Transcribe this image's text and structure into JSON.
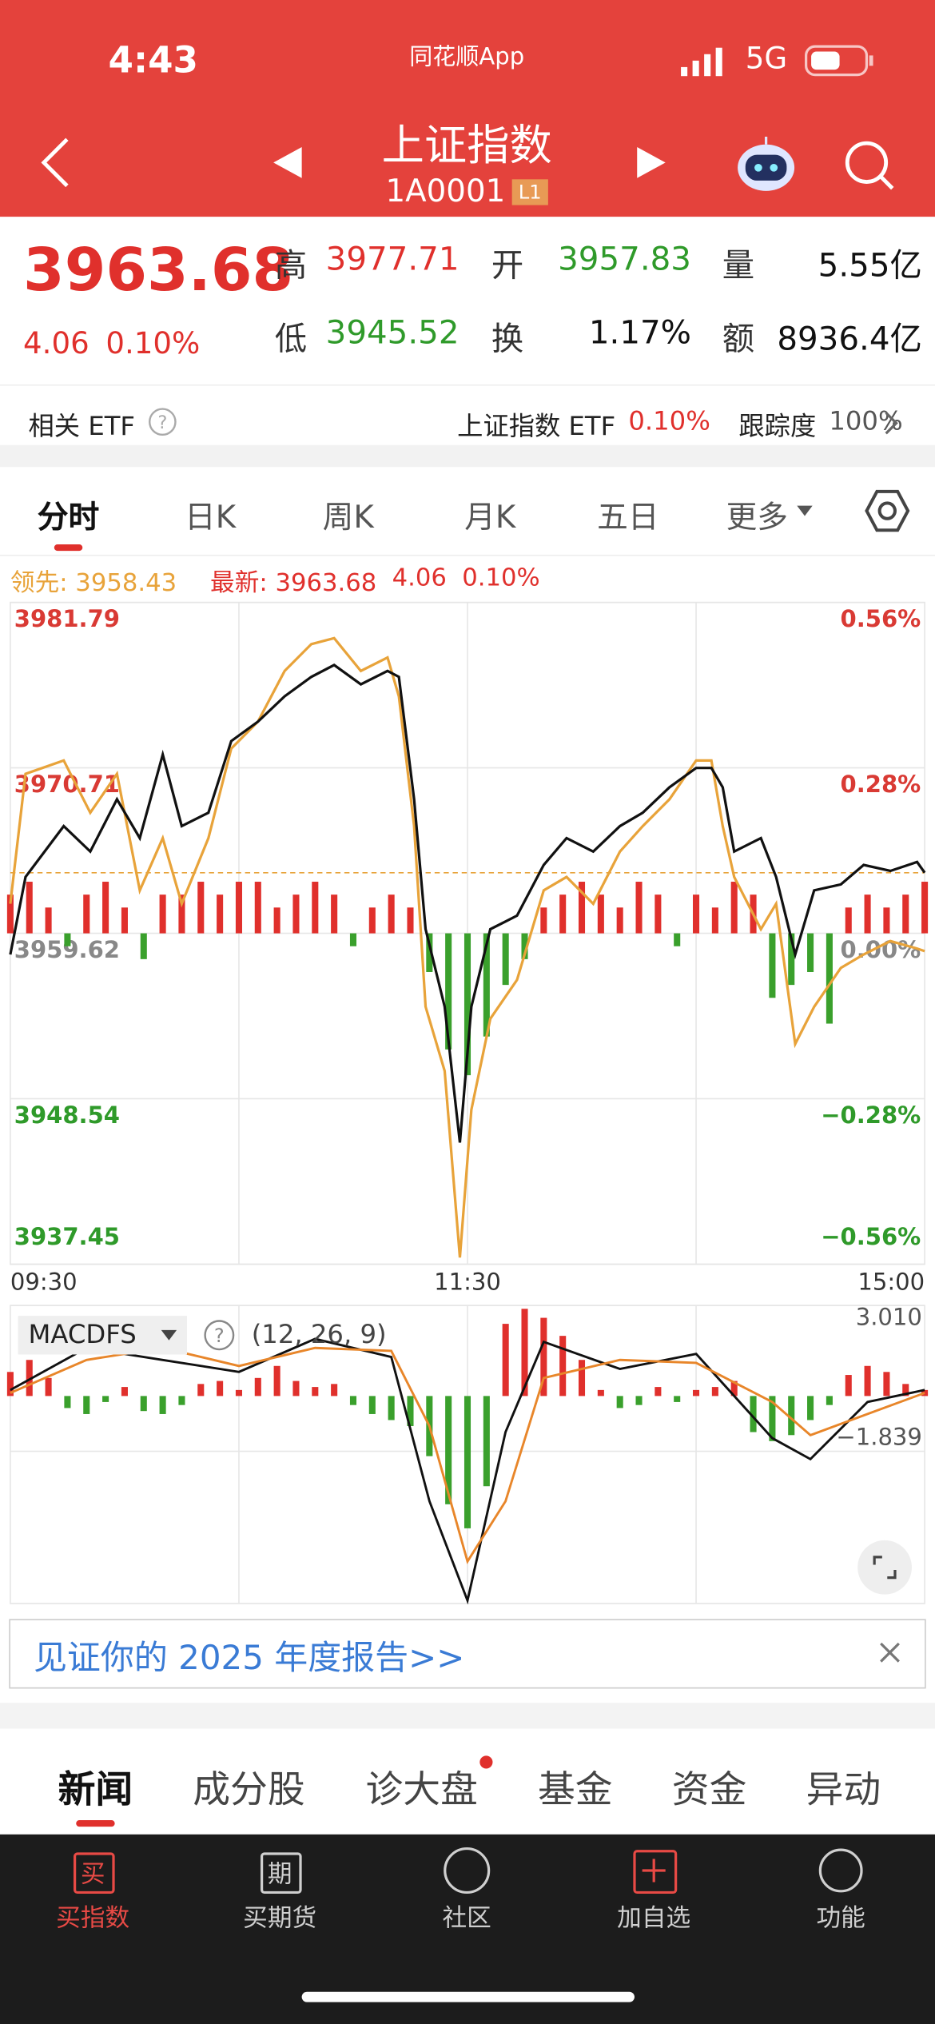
{
  "status_bar": {
    "time": "4:43",
    "app": "同花顺App",
    "network": "5G"
  },
  "header": {
    "title": "上证指数",
    "code": "1A0001",
    "level": "L1"
  },
  "quote": {
    "price": "3963.68",
    "change": "4.06",
    "change_pct": "0.10%",
    "stats": [
      {
        "label": "高",
        "value": "3977.71",
        "color": "#e0302c"
      },
      {
        "label": "开",
        "value": "3957.83",
        "color": "#2f9a2a"
      },
      {
        "label": "量",
        "value": "5.55亿",
        "color": "#111111"
      },
      {
        "label": "低",
        "value": "3945.52",
        "color": "#2f9a2a"
      },
      {
        "label": "换",
        "value": "1.17%",
        "color": "#111111"
      },
      {
        "label": "额",
        "value": "8936.4亿",
        "color": "#111111"
      }
    ]
  },
  "etf": {
    "label": "相关 ETF",
    "name": "上证指数 ETF",
    "change_pct": "0.10%",
    "tracking_label": "跟踪度",
    "tracking_value": "100%"
  },
  "tabs": [
    "分时",
    "日K",
    "周K",
    "月K",
    "五日",
    "更多"
  ],
  "legend": {
    "leader": "领先: 3958.43",
    "latest": "最新: 3963.68",
    "change": "4.06",
    "change_pct": "0.10%"
  },
  "chart_data": [
    {
      "type": "line",
      "x": [
        0,
        4,
        14,
        21,
        28,
        34,
        40,
        45,
        52,
        58,
        65,
        72,
        79,
        85,
        92,
        99,
        102,
        106,
        109,
        114,
        118,
        121,
        126,
        133,
        140,
        146,
        153,
        160,
        166,
        173,
        180,
        184,
        187,
        190,
        197,
        201,
        206,
        211,
        218,
        224,
        231,
        238,
        240
      ],
      "series": [
        {
          "color": "#111111",
          "values": [
            3958.2,
            3963.4,
            3966.8,
            3965.1,
            3968.6,
            3966.0,
            3971.6,
            3966.8,
            3967.7,
            3972.5,
            3973.8,
            3975.5,
            3976.8,
            3977.6,
            3976.3,
            3977.2,
            3976.8,
            3968.6,
            3959.9,
            3954.7,
            3945.6,
            3954.7,
            3959.9,
            3960.8,
            3964.2,
            3966.0,
            3965.1,
            3966.8,
            3967.7,
            3969.4,
            3970.7,
            3970.7,
            3969.4,
            3965.1,
            3966.0,
            3963.4,
            3958.2,
            3962.5,
            3962.9,
            3964.2,
            3963.8,
            3964.4,
            3963.68
          ]
        },
        {
          "color": "#e8a33a",
          "values": [
            3961.6,
            3970.3,
            3971.2,
            3967.7,
            3970.3,
            3962.5,
            3966.0,
            3961.6,
            3966.0,
            3972.0,
            3973.8,
            3977.2,
            3979.0,
            3979.4,
            3977.2,
            3978.1,
            3975.5,
            3966.8,
            3954.7,
            3950.4,
            3937.9,
            3947.8,
            3953.9,
            3956.5,
            3962.5,
            3963.4,
            3961.6,
            3965.1,
            3966.8,
            3968.6,
            3971.2,
            3971.2,
            3966.8,
            3963.4,
            3959.9,
            3961.6,
            3952.2,
            3954.7,
            3957.3,
            3958.2,
            3959.1,
            3958.6,
            3958.43
          ]
        }
      ],
      "bars": {
        "up_color": "#e0302c",
        "down_color": "#3aa02c",
        "x": [
          0,
          5,
          10,
          15,
          20,
          25,
          30,
          35,
          40,
          45,
          50,
          55,
          60,
          65,
          70,
          75,
          80,
          85,
          90,
          95,
          100,
          105,
          110,
          115,
          120,
          125,
          130,
          135,
          140,
          145,
          150,
          155,
          160,
          165,
          170,
          175,
          180,
          185,
          190,
          195,
          200,
          205,
          210,
          215,
          220,
          225,
          230,
          235,
          240
        ],
        "values": [
          3,
          4,
          2,
          -1,
          3,
          4,
          2,
          -2,
          3,
          3,
          4,
          3,
          4,
          4,
          2,
          3,
          4,
          3,
          -1,
          2,
          3,
          2,
          -3,
          -9,
          -11,
          -8,
          -4,
          -2,
          2,
          3,
          4,
          3,
          2,
          4,
          3,
          -1,
          3,
          2,
          4,
          3,
          -5,
          -4,
          -3,
          -7,
          2,
          3,
          2,
          3,
          4
        ]
      },
      "xlim": [
        0,
        240
      ],
      "xticks": [
        {
          "value": 0,
          "label": "09:30"
        },
        {
          "value": 120,
          "label": "11:30"
        },
        {
          "value": 240,
          "label": "15:00"
        }
      ],
      "ylim": [
        3937.45,
        3981.79
      ],
      "yticks": [
        3937.45,
        3948.54,
        3959.62,
        3970.71,
        3981.79
      ],
      "y2lim": [
        -0.56,
        0.56
      ],
      "y2ticks": [
        {
          "value": -0.56,
          "label": "−0.56%"
        },
        {
          "value": -0.28,
          "label": "−0.28%"
        },
        {
          "value": 0,
          "label": "0.00%"
        },
        {
          "value": 0.28,
          "label": "0.28%"
        },
        {
          "value": 0.56,
          "label": "0.56%"
        }
      ]
    },
    {
      "type": "macd",
      "label": "MACDFS",
      "params": "(12, 26, 9)",
      "ylim": [
        -6.9,
        3.01
      ],
      "yticks": [
        {
          "value": 3.01,
          "label": "3.010"
        },
        {
          "value": -1.839,
          "label": "−1.839"
        }
      ],
      "up_color": "#e0302c",
      "down_color": "#3aa02c",
      "hist_x": [
        0,
        5,
        10,
        15,
        20,
        25,
        30,
        35,
        40,
        45,
        50,
        55,
        60,
        65,
        70,
        75,
        80,
        85,
        90,
        95,
        100,
        105,
        110,
        115,
        120,
        125,
        130,
        135,
        140,
        145,
        150,
        155,
        160,
        165,
        170,
        175,
        180,
        185,
        190,
        195,
        200,
        205,
        210,
        215,
        220,
        225,
        230,
        235,
        240
      ],
      "hist": [
        0.8,
        1.2,
        0.6,
        -0.4,
        -0.6,
        -0.2,
        0.3,
        -0.5,
        -0.6,
        -0.3,
        0.4,
        0.5,
        0.2,
        0.6,
        1.0,
        0.5,
        0.3,
        0.4,
        -0.3,
        -0.6,
        -0.8,
        -1.0,
        -2.0,
        -3.6,
        -4.4,
        -3.0,
        2.4,
        2.9,
        2.6,
        2.0,
        1.2,
        0.2,
        -0.4,
        -0.3,
        0.3,
        -0.2,
        0.2,
        0.3,
        0.5,
        -1.2,
        -1.5,
        -1.3,
        -0.8,
        -0.3,
        0.7,
        1.0,
        0.8,
        0.4,
        0.2
      ],
      "line_x": [
        0,
        20,
        40,
        60,
        80,
        100,
        110,
        120,
        130,
        140,
        160,
        180,
        200,
        210,
        225,
        240
      ],
      "series": [
        {
          "color": "#111111",
          "values": [
            0.2,
            1.6,
            1.2,
            0.8,
            1.9,
            1.3,
            -3.5,
            -6.8,
            -1.2,
            1.8,
            0.9,
            1.4,
            -1.4,
            -2.1,
            -0.2,
            0.2
          ]
        },
        {
          "color": "#e8862a",
          "values": [
            0.1,
            1.2,
            1.6,
            1.0,
            1.6,
            1.5,
            -1.0,
            -5.5,
            -3.5,
            0.6,
            1.2,
            1.1,
            -0.2,
            -1.3,
            -0.6,
            0.1
          ]
        }
      ]
    }
  ],
  "banner": {
    "text": "见证你的 2025 年度报告>>"
  },
  "news_tabs": [
    "新闻",
    "成分股",
    "诊大盘",
    "基金",
    "资金",
    "异动"
  ],
  "nav": [
    {
      "icon": "买",
      "label": "买指数"
    },
    {
      "icon": "期",
      "label": "买期货"
    },
    {
      "label": "社区"
    },
    {
      "label": "加自选"
    },
    {
      "label": "功能"
    }
  ]
}
